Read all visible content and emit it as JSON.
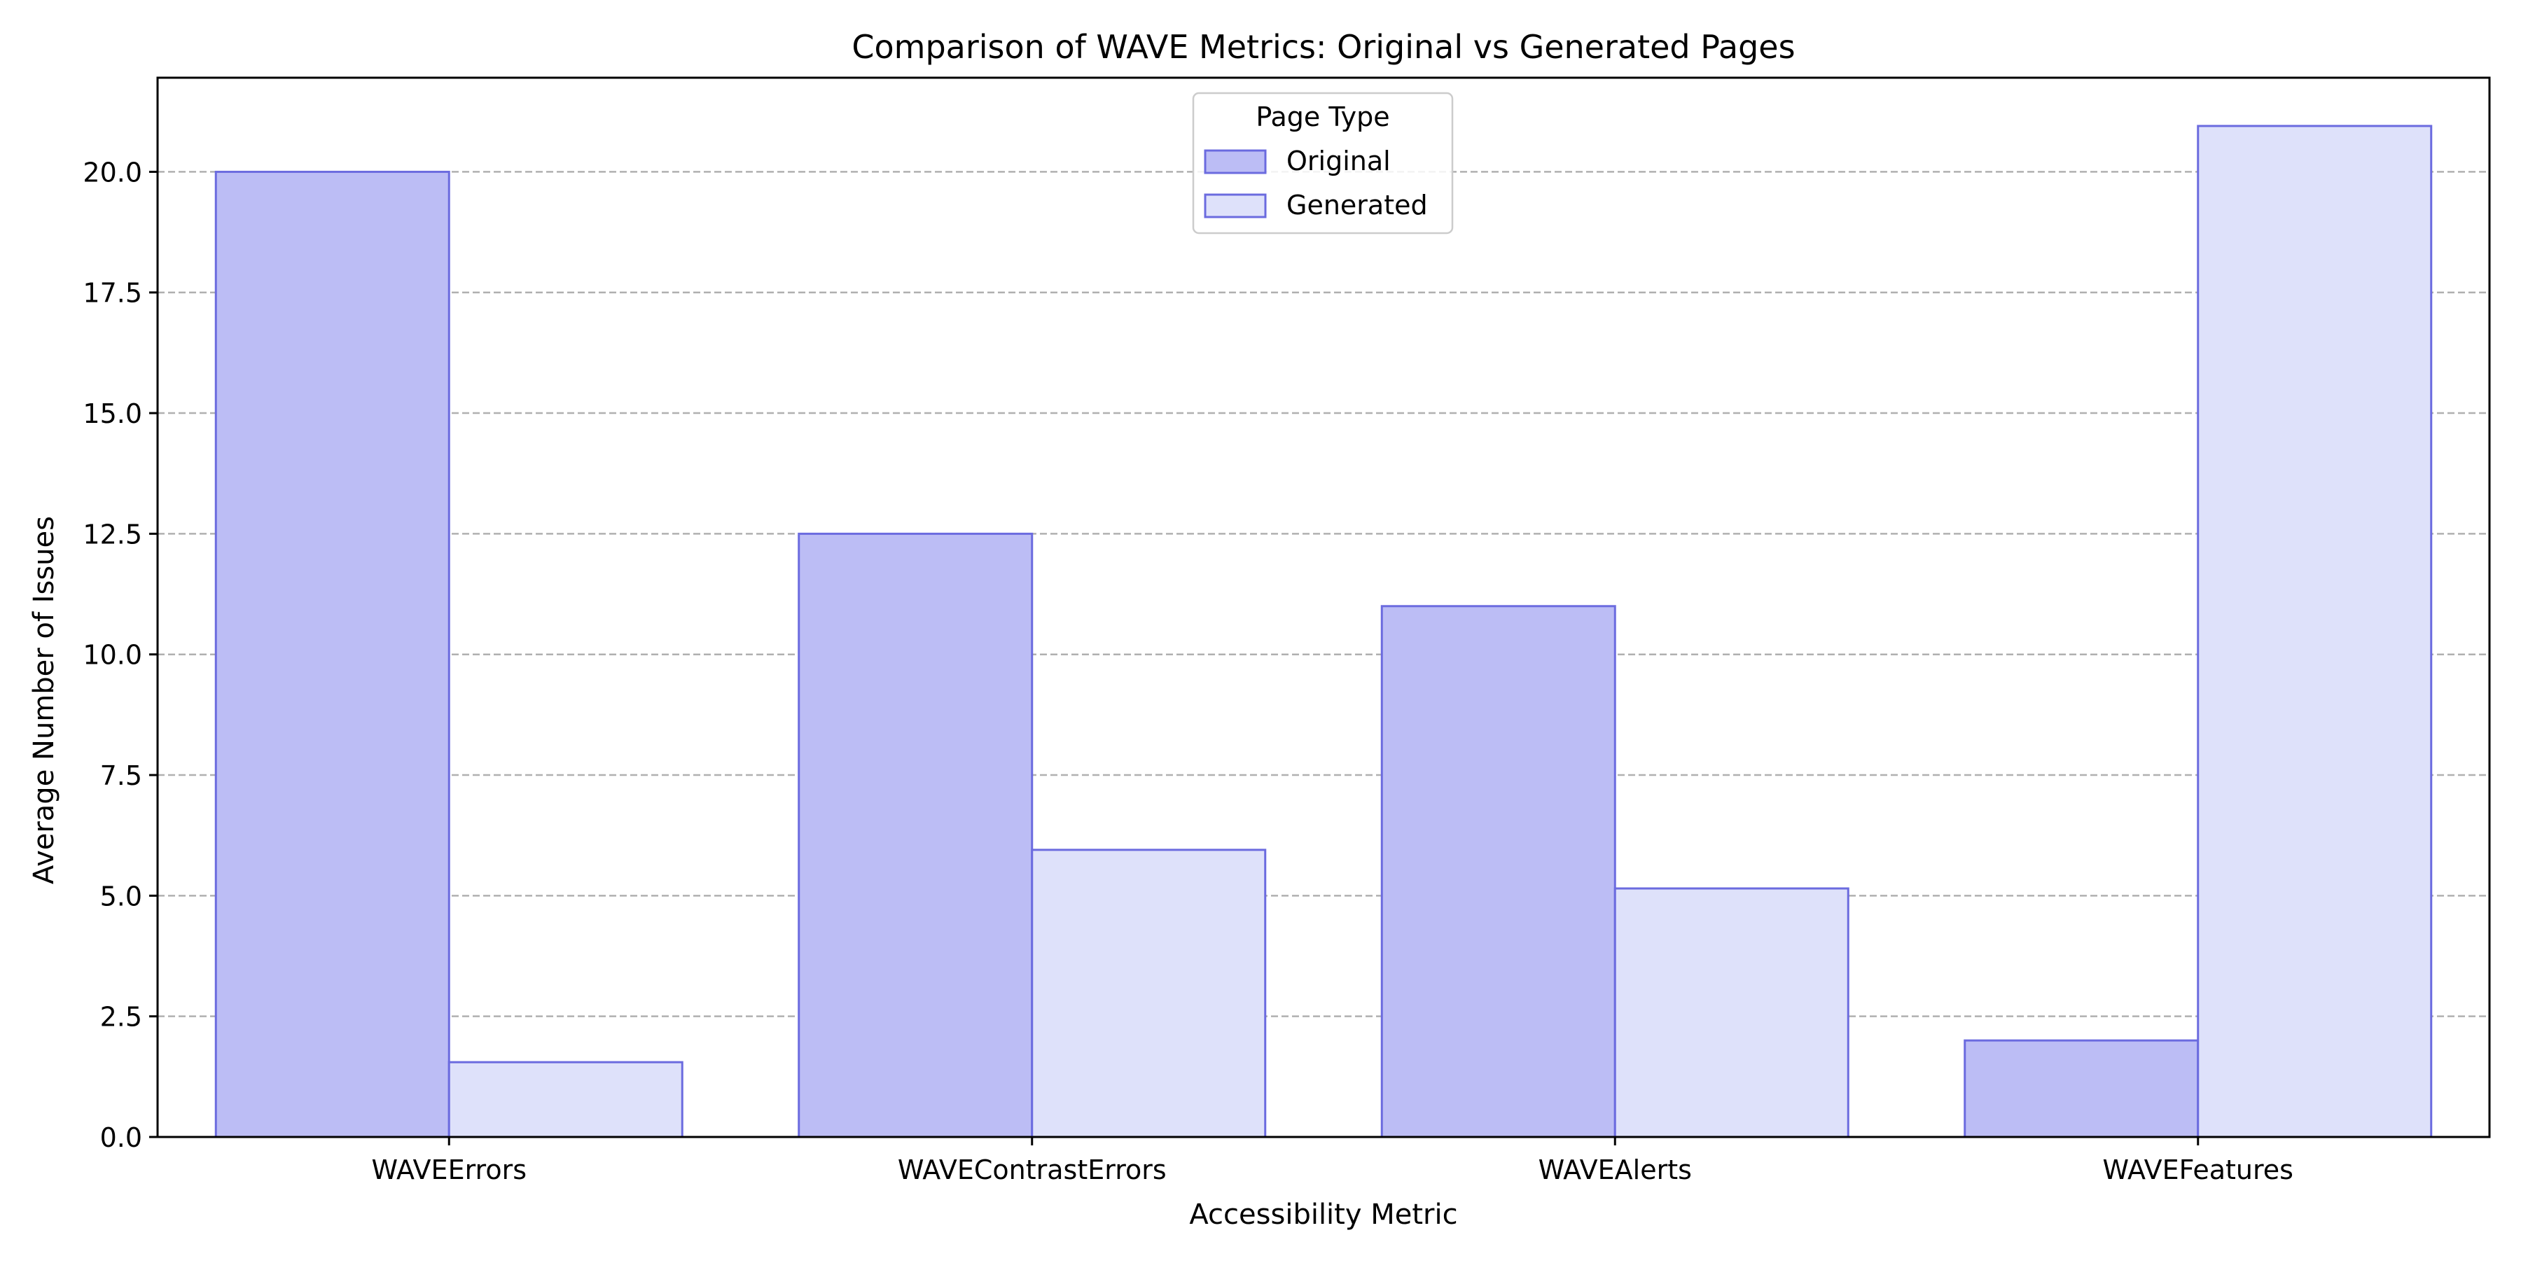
{
  "chart_data": {
    "type": "bar",
    "title": "Comparison of WAVE Metrics: Original vs Generated Pages",
    "xlabel": "Accessibility Metric",
    "ylabel": "Average Number of Issues",
    "categories": [
      "WAVEErrors",
      "WAVEContrastErrors",
      "WAVEAlerts",
      "WAVEFeatures"
    ],
    "series": [
      {
        "name": "Original",
        "values": [
          20.0,
          12.5,
          11.0,
          2.0
        ],
        "color": "#bcbdf5"
      },
      {
        "name": "Generated",
        "values": [
          1.55,
          5.95,
          5.15,
          20.95
        ],
        "color": "#dee1fa"
      }
    ],
    "edge_color": "#6b6bdf",
    "ylim": [
      0,
      21.95
    ],
    "yticks": [
      "0.0",
      "2.5",
      "5.0",
      "7.5",
      "10.0",
      "12.5",
      "15.0",
      "17.5",
      "20.0"
    ],
    "grid": "y-dashed",
    "legend": {
      "title": "Page Type",
      "position": "top-center"
    }
  }
}
